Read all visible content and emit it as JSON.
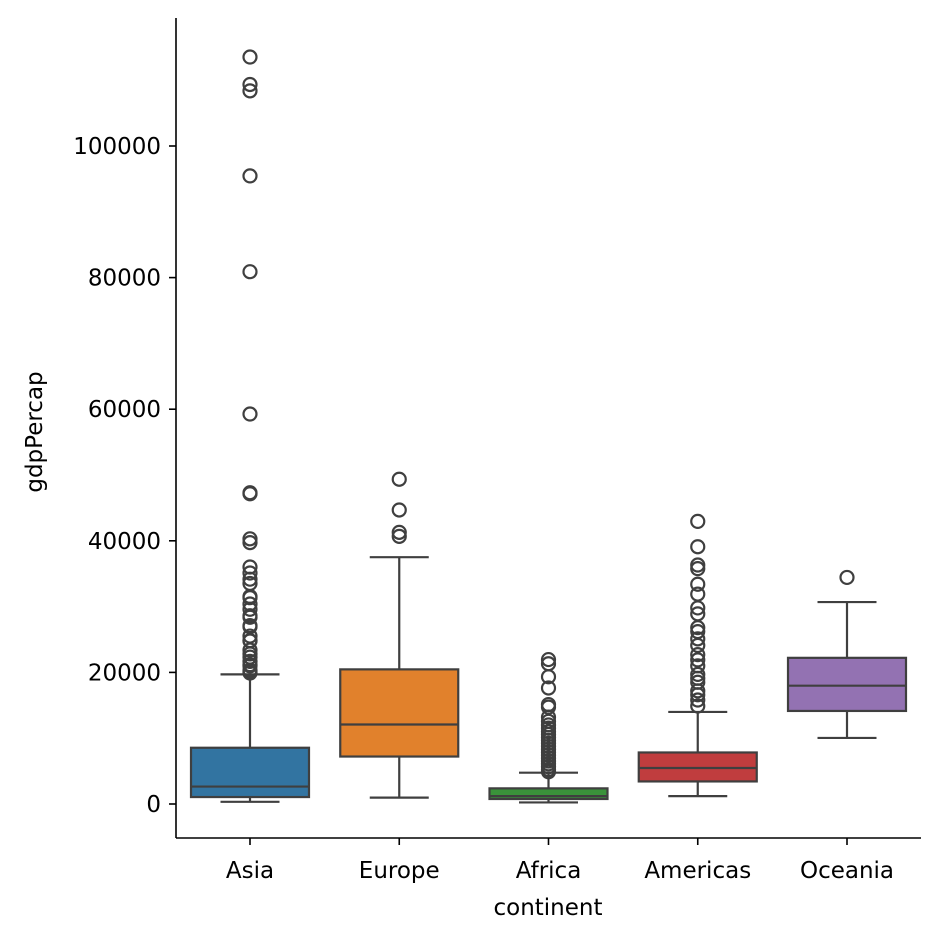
{
  "chart_data": {
    "type": "boxplot",
    "title": "",
    "xlabel": "continent",
    "ylabel": "gdpPercap",
    "ylim": [
      -5000,
      118000
    ],
    "yticks": [
      0,
      20000,
      40000,
      60000,
      80000,
      100000
    ],
    "ytick_labels": [
      "0",
      "20000",
      "40000",
      "60000",
      "80000",
      "100000"
    ],
    "grid": false,
    "legend": "none",
    "categories": [
      "Asia",
      "Europe",
      "Africa",
      "Americas",
      "Oceania"
    ],
    "boxes": [
      {
        "category": "Asia",
        "color": "#3274a1",
        "whisker_low": 331,
        "q1": 1057,
        "median": 2647,
        "q3": 8549,
        "whisker_high": 19702,
        "outliers": [
          113523,
          109348,
          108382,
          95458,
          80895,
          59265,
          47306,
          47143,
          40300,
          39725,
          36023,
          35110,
          34167,
          33519,
          31541,
          31354,
          30400,
          29598,
          28604,
          28378,
          27107,
          26939,
          25523,
          24841,
          24768,
          23404,
          22806,
          22316,
          21673,
          21180,
          20987,
          20333,
          20100,
          19900
        ]
      },
      {
        "category": "Europe",
        "color": "#e1812c",
        "whisker_low": 974,
        "q1": 7213,
        "median": 12082,
        "q3": 20461,
        "whisker_high": 37506,
        "outliers": [
          49357,
          44684,
          41283,
          40676
        ]
      },
      {
        "category": "Africa",
        "color": "#3a923a",
        "whisker_low": 241,
        "q1": 761,
        "median": 1192,
        "q3": 2377,
        "whisker_high": 4761,
        "outliers": [
          21951,
          21318,
          19333,
          17634,
          15114,
          14722,
          13206,
          12570,
          12013,
          11526,
          11000,
          10553,
          10100,
          9650,
          9210,
          8750,
          8300,
          7860,
          7420,
          6980,
          6540,
          6100,
          5670,
          5230,
          4900
        ]
      },
      {
        "category": "Americas",
        "color": "#c03d3e",
        "whisker_low": 1202,
        "q1": 3428,
        "median": 5466,
        "q3": 7831,
        "whisker_high": 13990,
        "outliers": [
          42952,
          39097,
          36320,
          35768,
          33400,
          31900,
          29800,
          28900,
          26800,
          26200,
          25100,
          24100,
          22700,
          21900,
          21000,
          19700,
          19100,
          18500,
          17200,
          16600,
          15800,
          14900
        ]
      },
      {
        "category": "Oceania",
        "color": "#9372b2",
        "whisker_low": 10040,
        "q1": 14141,
        "median": 17983,
        "q3": 22214,
        "whisker_high": 30688,
        "outliers": [
          34435
        ]
      }
    ]
  }
}
